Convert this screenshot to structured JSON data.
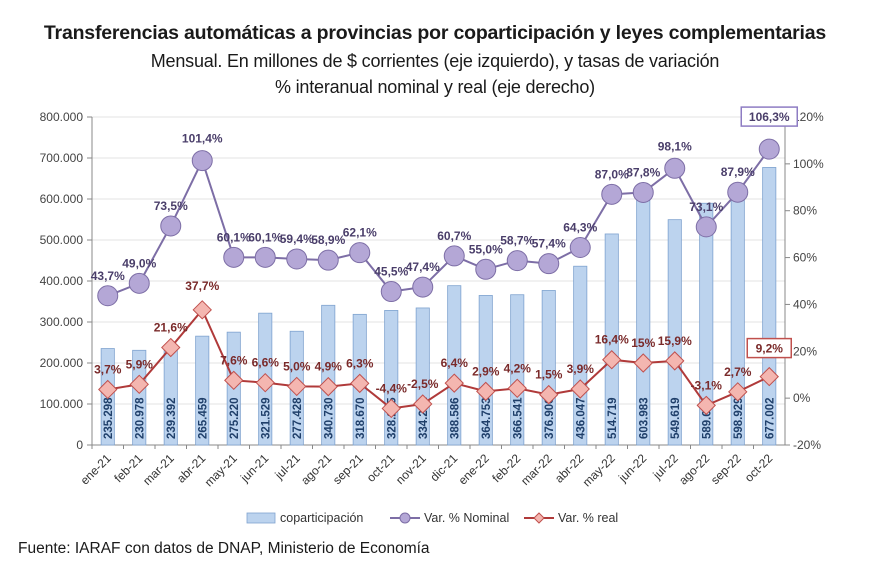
{
  "chart_data": {
    "type": "bar+line",
    "title": "Transferencias automáticas a provincias por coparticipación y leyes complementarias",
    "subtitle": "Mensual. En millones de $ corrientes (eje izquierdo), y tasas de variación % interanual nominal y real (eje derecho)",
    "categories": [
      "ene-21",
      "feb-21",
      "mar-21",
      "abr-21",
      "may-21",
      "jun-21",
      "jul-21",
      "ago-21",
      "sep-21",
      "oct-21",
      "nov-21",
      "dic-21",
      "ene-22",
      "feb-22",
      "mar-22",
      "abr-22",
      "may-22",
      "jun-22",
      "jul-22",
      "ago-22",
      "sep-22",
      "oct-22"
    ],
    "series": [
      {
        "name": "coparticipación",
        "type": "bar",
        "axis": "left",
        "color": "#bcd3ee",
        "values": [
          235298,
          230978,
          239392,
          265459,
          275220,
          321529,
          277428,
          340730,
          318670,
          328205,
          334241,
          388586,
          364753,
          366541,
          376906,
          436047,
          514719,
          603983,
          549619,
          589639,
          598929,
          677002
        ],
        "labels": [
          "235.298",
          "230.978",
          "239.392",
          "265.459",
          "275.220",
          "321.529",
          "277.428",
          "340.730",
          "318.670",
          "328.205",
          "334.241",
          "388.586",
          "364.753",
          "366.541",
          "376.906",
          "436.047",
          "514.719",
          "603.983",
          "549.619",
          "589.639",
          "598.929",
          "677.002"
        ]
      },
      {
        "name": "Var. % Nominal",
        "type": "line",
        "axis": "right",
        "color": "#8e7cc3",
        "values": [
          43.7,
          49.0,
          73.5,
          101.4,
          60.1,
          60.1,
          59.4,
          58.9,
          62.1,
          45.5,
          47.4,
          60.7,
          55.0,
          58.7,
          57.4,
          64.3,
          87.0,
          87.8,
          98.1,
          73.1,
          87.9,
          106.3
        ],
        "labels": [
          "43,7%",
          "49,0%",
          "73,5%",
          "101,4%",
          "60,1%",
          "60,1%",
          "59,4%",
          "58,9%",
          "62,1%",
          "45,5%",
          "47,4%",
          "60,7%",
          "55,0%",
          "58,7%",
          "57,4%",
          "64,3%",
          "87,0%",
          "87,8%",
          "98,1%",
          "73,1%",
          "87,9%",
          "106,3%"
        ]
      },
      {
        "name": "Var. % real",
        "type": "line",
        "axis": "right",
        "color": "#b03a3a",
        "values": [
          3.7,
          5.9,
          21.6,
          37.7,
          7.6,
          6.6,
          5.0,
          4.9,
          6.3,
          -4.4,
          -2.5,
          6.4,
          2.9,
          4.2,
          1.5,
          3.9,
          16.4,
          15.0,
          15.9,
          -3.1,
          2.7,
          9.2
        ],
        "labels": [
          "3,7%",
          "5,9%",
          "21,6%",
          "37,7%",
          "7,6%",
          "6,6%",
          "5,0%",
          "4,9%",
          "6,3%",
          "-4,4%",
          "-2,5%",
          "6,4%",
          "2,9%",
          "4,2%",
          "1,5%",
          "3,9%",
          "16,4%",
          "15%",
          "15,9%",
          "-3,1%",
          "2,7%",
          "9,2%"
        ]
      }
    ],
    "left_axis": {
      "ylim": [
        0,
        800000
      ],
      "ticks": [
        "0",
        "100.000",
        "200.000",
        "300.000",
        "400.000",
        "500.000",
        "600.000",
        "700.000",
        "800.000"
      ]
    },
    "right_axis": {
      "ylim": [
        -20,
        120
      ],
      "ticks": [
        "-20%",
        "0%",
        "20%",
        "40%",
        "60%",
        "80%",
        "100%",
        "120%"
      ]
    },
    "grid": true,
    "legend_position": "bottom",
    "legend": [
      "coparticipación",
      "Var. % Nominal",
      "Var. % real"
    ],
    "highlighted_labels": [
      "106,3%",
      "9,2%"
    ],
    "source": "Fuente: IARAF con datos de DNAP, Ministerio de Economía"
  }
}
